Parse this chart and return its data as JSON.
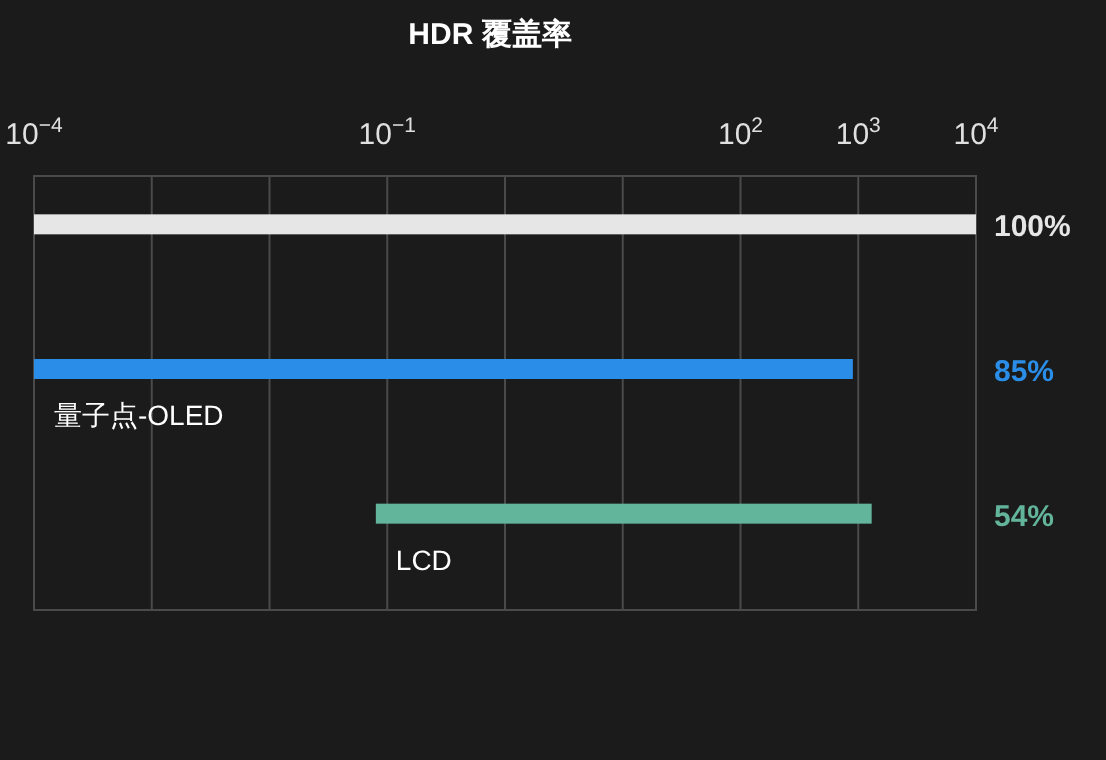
{
  "chart_data": {
    "type": "bar",
    "orientation": "horizontal",
    "title": "HDR 覆盖率",
    "categories": [
      null,
      "量子点-OLED",
      "LCD"
    ],
    "base": [
      0.0001,
      0.0001,
      0.08
    ],
    "values": [
      9999.9999,
      900,
      1300
    ],
    "colors": [
      "#e6e6e6",
      "#2a8ee8",
      "#62b49a"
    ],
    "annotations": [
      "100%",
      "85%",
      "54%"
    ],
    "log": "x",
    "xlim": [
      0.0001,
      10000
    ],
    "xticks": [
      {
        "value": 0.0001,
        "label": "10$^{−4}$"
      },
      {
        "value": 0.001,
        "label": null
      },
      {
        "value": 0.01,
        "label": null
      },
      {
        "value": 0.1,
        "label": "10$^{−1}$"
      },
      {
        "value": 1,
        "label": null
      },
      {
        "value": 10,
        "label": null
      },
      {
        "value": 100,
        "label": "10$^{2}$"
      },
      {
        "value": 1000,
        "label": "10$^{3}$"
      },
      {
        "value": 10000,
        "label": "10$^{4}$"
      }
    ],
    "grid": "x"
  }
}
